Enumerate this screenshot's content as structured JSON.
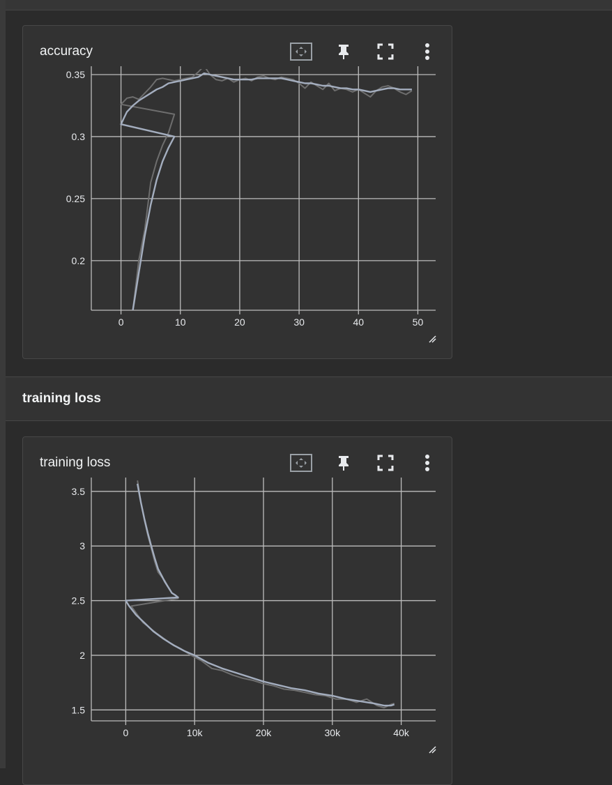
{
  "cards": [
    {
      "title": "accuracy",
      "toolbar": {
        "fit_domain": "fit-domain-icon",
        "pin": "pin-icon",
        "fullscreen": "fullscreen-icon",
        "more": "more-vert-icon"
      }
    },
    {
      "title": "training loss",
      "toolbar": {
        "fit_domain": "fit-domain-icon",
        "pin": "pin-icon",
        "fullscreen": "fullscreen-icon",
        "more": "more-vert-icon"
      }
    }
  ],
  "group": {
    "title": "training loss"
  },
  "colors": {
    "background": "#2b2b2b",
    "card": "#323232",
    "grid": "#bdbdbd",
    "smoothed_line": "#a4aebf",
    "raw_line": "#6e6e6e"
  },
  "chart_data": [
    {
      "type": "line",
      "title": "accuracy",
      "xlabel": "",
      "ylabel": "",
      "xlim": [
        -5,
        53
      ],
      "ylim": [
        0.16,
        0.35
      ],
      "x_ticks": [
        0,
        10,
        20,
        30,
        40,
        50
      ],
      "x_tick_labels": [
        "0",
        "10",
        "20",
        "30",
        "40",
        "50"
      ],
      "y_ticks": [
        0.2,
        0.25,
        0.3,
        0.35
      ],
      "y_tick_labels": [
        "0.2",
        "0.25",
        "0.3",
        "0.35"
      ],
      "grid": true,
      "series": [
        {
          "role": "raw",
          "x": [
            2,
            3,
            4,
            5,
            6,
            7,
            8,
            9,
            0,
            1,
            2,
            3,
            4,
            5,
            6,
            7,
            8,
            9,
            10,
            11,
            12,
            13,
            14,
            15,
            16,
            17,
            18,
            19,
            20,
            21,
            22,
            23,
            24,
            25,
            26,
            27,
            28,
            29,
            30,
            31,
            32,
            33,
            34,
            35,
            36,
            37,
            38,
            39,
            40,
            41,
            42,
            43,
            44,
            45,
            46,
            47,
            48,
            49
          ],
          "y": [
            0.16,
            0.2,
            0.225,
            0.263,
            0.28,
            0.293,
            0.303,
            0.318,
            0.326,
            0.331,
            0.332,
            0.33,
            0.335,
            0.34,
            0.346,
            0.347,
            0.346,
            0.345,
            0.346,
            0.347,
            0.348,
            0.352,
            0.357,
            0.35,
            0.346,
            0.345,
            0.347,
            0.344,
            0.346,
            0.347,
            0.345,
            0.348,
            0.349,
            0.347,
            0.346,
            0.348,
            0.347,
            0.346,
            0.343,
            0.339,
            0.344,
            0.341,
            0.338,
            0.343,
            0.337,
            0.339,
            0.338,
            0.336,
            0.338,
            0.335,
            0.332,
            0.337,
            0.34,
            0.341,
            0.339,
            0.336,
            0.334,
            0.337
          ]
        },
        {
          "role": "smoothed",
          "x": [
            2,
            3,
            4,
            5,
            6,
            7,
            8,
            9,
            0,
            0.5,
            1,
            2,
            3,
            4,
            5,
            6,
            7,
            8,
            9,
            10,
            11,
            12,
            13,
            14,
            15,
            16,
            17,
            18,
            19,
            20,
            21,
            22,
            23,
            24,
            25,
            26,
            27,
            28,
            29,
            30,
            31,
            32,
            33,
            34,
            35,
            36,
            37,
            38,
            39,
            40,
            41,
            42,
            43,
            44,
            45,
            46,
            47,
            48,
            49
          ],
          "y": [
            0.16,
            0.19,
            0.22,
            0.245,
            0.265,
            0.28,
            0.291,
            0.3,
            0.31,
            0.315,
            0.32,
            0.325,
            0.329,
            0.332,
            0.335,
            0.338,
            0.34,
            0.343,
            0.344,
            0.345,
            0.346,
            0.347,
            0.348,
            0.351,
            0.35,
            0.349,
            0.348,
            0.347,
            0.346,
            0.346,
            0.346,
            0.346,
            0.347,
            0.347,
            0.347,
            0.347,
            0.347,
            0.346,
            0.345,
            0.344,
            0.343,
            0.343,
            0.342,
            0.341,
            0.341,
            0.34,
            0.339,
            0.339,
            0.338,
            0.338,
            0.337,
            0.336,
            0.337,
            0.338,
            0.339,
            0.339,
            0.338,
            0.338,
            0.338
          ]
        }
      ]
    },
    {
      "type": "line",
      "title": "training loss",
      "xlabel": "",
      "ylabel": "",
      "xlim": [
        -5000,
        45000
      ],
      "ylim": [
        1.4,
        3.55
      ],
      "x_ticks": [
        0,
        10000,
        20000,
        30000,
        40000
      ],
      "x_tick_labels": [
        "0",
        "10k",
        "20k",
        "30k",
        "40k"
      ],
      "y_ticks": [
        1.5,
        2,
        2.5,
        3,
        3.5
      ],
      "y_tick_labels": [
        "1.5",
        "2",
        "2.5",
        "3",
        "3.5"
      ],
      "grid": true,
      "series": [
        {
          "role": "raw",
          "x": [
            1700,
            2200,
            2700,
            3200,
            3700,
            4200,
            4700,
            5200,
            5700,
            6200,
            6700,
            7200,
            7600,
            800,
            2500,
            4500,
            6500,
            8000,
            9500,
            11000,
            12500,
            14000,
            15500,
            17000,
            18500,
            20000,
            21500,
            23000,
            24500,
            26000,
            27500,
            29000,
            30500,
            32000,
            33500,
            35000,
            36500,
            37500,
            38500,
            39000
          ],
          "y": [
            3.6,
            3.4,
            3.24,
            3.1,
            2.98,
            2.86,
            2.76,
            2.72,
            2.68,
            2.62,
            2.57,
            2.55,
            2.52,
            2.45,
            2.3,
            2.2,
            2.11,
            2.06,
            2.0,
            1.95,
            1.88,
            1.86,
            1.82,
            1.79,
            1.77,
            1.74,
            1.72,
            1.69,
            1.68,
            1.66,
            1.64,
            1.63,
            1.6,
            1.6,
            1.57,
            1.6,
            1.54,
            1.52,
            1.55,
            1.56
          ]
        },
        {
          "role": "smoothed",
          "x": [
            1700,
            2200,
            2700,
            3200,
            3700,
            4200,
            4700,
            5200,
            5700,
            6200,
            6700,
            7200,
            7600,
            0,
            500,
            1500,
            2500,
            4000,
            5500,
            7000,
            8500,
            10000,
            12000,
            14000,
            16000,
            18000,
            20000,
            22000,
            24000,
            26000,
            28000,
            30000,
            32000,
            34000,
            36000,
            37500,
            38500,
            39000
          ],
          "y": [
            3.57,
            3.4,
            3.25,
            3.12,
            3.0,
            2.89,
            2.79,
            2.73,
            2.67,
            2.62,
            2.57,
            2.55,
            2.53,
            2.5,
            2.45,
            2.37,
            2.31,
            2.22,
            2.15,
            2.09,
            2.04,
            2.0,
            1.93,
            1.88,
            1.84,
            1.8,
            1.76,
            1.73,
            1.7,
            1.68,
            1.65,
            1.63,
            1.6,
            1.58,
            1.56,
            1.54,
            1.54,
            1.55
          ]
        }
      ]
    }
  ]
}
